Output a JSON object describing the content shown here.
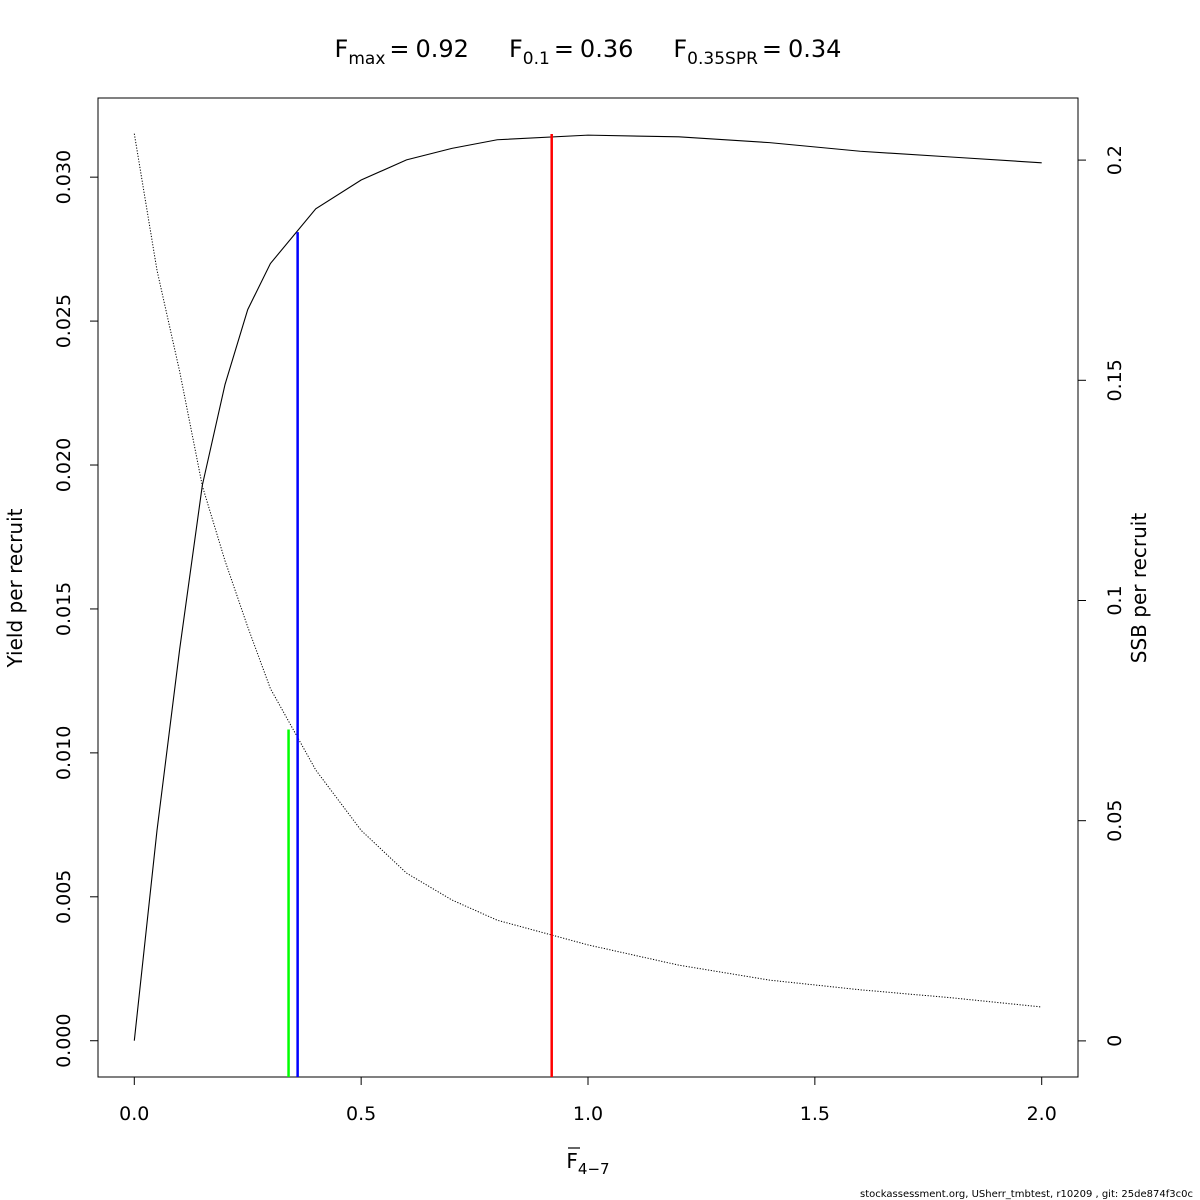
{
  "chart_data": {
    "type": "line",
    "title_parts": [
      {
        "symbol": "F",
        "subscript": "max",
        "equals": "=",
        "value": 0.92
      },
      {
        "symbol": "F",
        "subscript": "0.1",
        "equals": "=",
        "value": 0.36
      },
      {
        "symbol": "F",
        "subscript": "0.35SPR",
        "equals": "=",
        "value": 0.34
      }
    ],
    "x_label": {
      "symbol": "F",
      "subscript": "4−7"
    },
    "y_label": "Yield per recruit",
    "y2_label": "SSB per recruit",
    "footer": "stockassessment.org, USherr_tmbtest, r10209 , git: 25de874f3c0c",
    "x": [
      0,
      0.05,
      0.1,
      0.15,
      0.2,
      0.25,
      0.3,
      0.4,
      0.5,
      0.6,
      0.7,
      0.8,
      1.0,
      1.2,
      1.4,
      1.6,
      1.8,
      2.0
    ],
    "series": [
      {
        "color": "#000000",
        "dash": "solid",
        "values": [
          0,
          0.0073,
          0.0136,
          0.0193,
          0.0228,
          0.0254,
          0.027,
          0.0289,
          0.0299,
          0.0306,
          0.031,
          0.0313,
          0.03146,
          0.0314,
          0.0312,
          0.0309,
          0.0307,
          0.0305
        ]
      },
      {
        "color": "#000000",
        "dash": "dotted",
        "axis": "y2",
        "values": [
          0.206,
          0.175,
          0.152,
          0.126,
          0.109,
          0.094,
          0.08,
          0.0615,
          0.0478,
          0.0381,
          0.032,
          0.0274,
          0.0218,
          0.0172,
          0.0138,
          0.0116,
          0.0098,
          0.0077
        ]
      }
    ],
    "reference_lines": [
      {
        "x": 0.34,
        "y": 0.0707,
        "axis": "y2",
        "color": "#00ff00"
      },
      {
        "x": 0.36,
        "y": 0.02809,
        "axis": "y",
        "color": "#0000ff"
      },
      {
        "x": 0.92,
        "y": 0.0315,
        "axis": "y",
        "color": "#ff0000"
      }
    ],
    "xlim": [
      -0.08,
      2.08
    ],
    "ylim": [
      -0.00126,
      0.03275
    ],
    "y2lim": [
      -0.0082,
      0.2141
    ],
    "xticks": [
      {
        "value": 0,
        "label": "0.0"
      },
      0.5,
      {
        "value": 1,
        "label": "1.0"
      },
      1.5,
      {
        "value": 2,
        "label": "2.0"
      }
    ],
    "yticks": [
      {
        "value": 0,
        "label": "0.000"
      },
      {
        "value": 0.005,
        "label": "0.005"
      },
      {
        "value": 0.01,
        "label": "0.010"
      },
      {
        "value": 0.015,
        "label": "0.015"
      },
      {
        "value": 0.02,
        "label": "0.020"
      },
      {
        "value": 0.025,
        "label": "0.025"
      },
      {
        "value": 0.03,
        "label": "0.030"
      }
    ],
    "y2ticks": [
      0,
      0.05,
      0.1,
      0.15,
      0.2
    ]
  }
}
